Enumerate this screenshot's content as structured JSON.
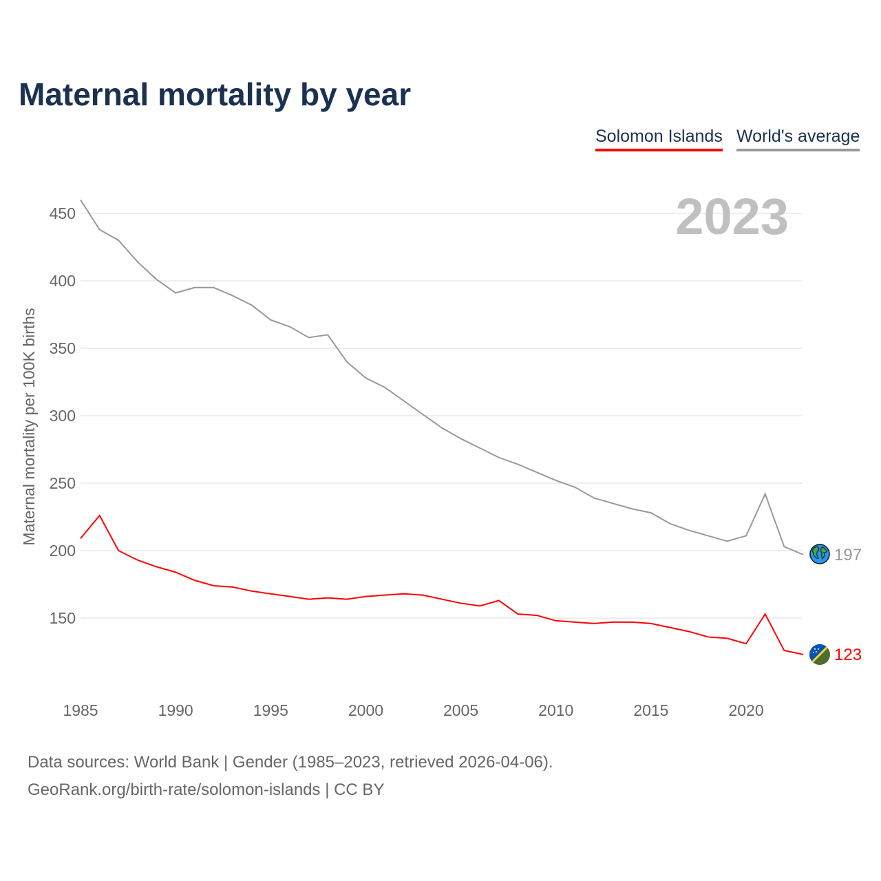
{
  "title": "Maternal mortality by year",
  "legend": [
    "Solomon Islands",
    "World's average"
  ],
  "year_label": "2023",
  "footer": {
    "line1": "Data sources: World Bank | Gender (1985–2023, retrieved 2026-04-06).",
    "line2": "GeoRank.org/birth-rate/solomon-islands | CC BY"
  },
  "chart_data": {
    "type": "line",
    "title": "Maternal mortality by year",
    "xlabel": "",
    "ylabel": "Maternal mortality per 100K births",
    "xlim": [
      1985,
      2023
    ],
    "ylim": [
      100,
      460
    ],
    "xticks": [
      1985,
      1990,
      1995,
      2000,
      2005,
      2010,
      2015,
      2020
    ],
    "yticks": [
      150,
      200,
      250,
      300,
      350,
      400,
      450
    ],
    "grid": true,
    "legend_position": "top-right",
    "x": [
      1985,
      1986,
      1987,
      1988,
      1989,
      1990,
      1991,
      1992,
      1993,
      1994,
      1995,
      1996,
      1997,
      1998,
      1999,
      2000,
      2001,
      2002,
      2003,
      2004,
      2005,
      2006,
      2007,
      2008,
      2009,
      2010,
      2011,
      2012,
      2013,
      2014,
      2015,
      2016,
      2017,
      2018,
      2019,
      2020,
      2021,
      2022,
      2023
    ],
    "series": [
      {
        "name": "Solomon Islands",
        "color": "#ff0000",
        "end_label": "123",
        "values": [
          209,
          226,
          200,
          193,
          188,
          184,
          178,
          174,
          173,
          170,
          168,
          166,
          164,
          165,
          164,
          166,
          167,
          168,
          167,
          164,
          161,
          159,
          163,
          153,
          152,
          148,
          147,
          146,
          147,
          147,
          146,
          143,
          140,
          136,
          135,
          131,
          153,
          126,
          123
        ]
      },
      {
        "name": "World's average",
        "color": "#999999",
        "end_label": "197",
        "values": [
          460,
          438,
          430,
          414,
          401,
          391,
          395,
          395,
          389,
          382,
          371,
          366,
          358,
          360,
          340,
          328,
          321,
          311,
          301,
          291,
          283,
          276,
          269,
          264,
          258,
          252,
          247,
          239,
          235,
          231,
          228,
          220,
          215,
          211,
          207,
          211,
          242,
          203,
          197
        ]
      }
    ]
  }
}
